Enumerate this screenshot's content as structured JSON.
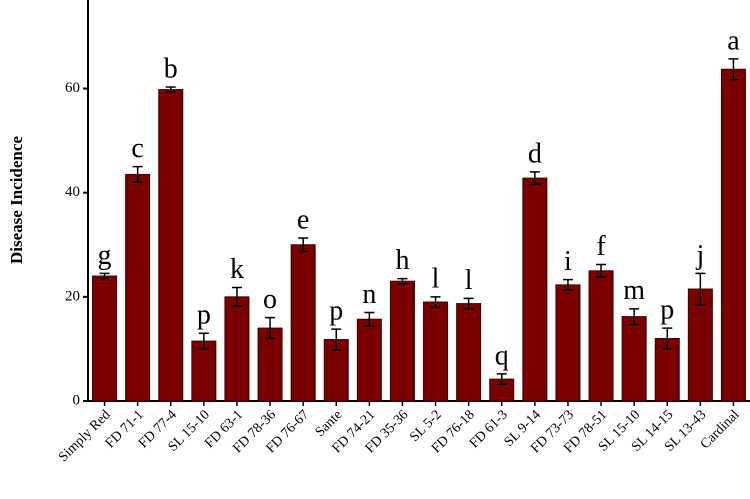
{
  "chart_data": {
    "type": "bar",
    "ylabel": "Disease Incidence",
    "categories": [
      "Simply Red",
      "FD 71-1",
      "FD 77-4",
      "SL 15-10",
      "FD 63-1",
      "FD 78-36",
      "FD 76-67",
      "Sante",
      "FD 74-21",
      "FD 35-36",
      "SL 5-2",
      "FD 76-18",
      "FD 61-3",
      "SL 9-14",
      "FD 73-73",
      "FD 78-51",
      "SL 15-10",
      "SL 14-15",
      "SL 13-43",
      "Cardinal"
    ],
    "values": [
      24,
      43.5,
      59.8,
      11.5,
      20,
      14,
      30,
      11.8,
      15.7,
      23,
      19,
      18.7,
      4.2,
      42.8,
      22.3,
      25,
      16.2,
      12,
      21.5,
      63.7
    ],
    "errors": [
      0.5,
      1.5,
      0.5,
      1.5,
      1.8,
      2,
      1.3,
      2,
      1.3,
      0.5,
      1,
      1,
      1,
      1.2,
      1,
      1.2,
      1.5,
      2,
      3,
      2
    ],
    "annotations": [
      "g",
      "c",
      "b",
      "p",
      "k",
      "o",
      "e",
      "p",
      "n",
      "h",
      "l",
      "l",
      "q",
      "d",
      "i",
      "f",
      "m",
      "p",
      "j",
      "a"
    ],
    "color": "#7a0000",
    "ylim": [
      0,
      77
    ],
    "yticks": [
      0,
      20,
      40,
      60
    ]
  }
}
